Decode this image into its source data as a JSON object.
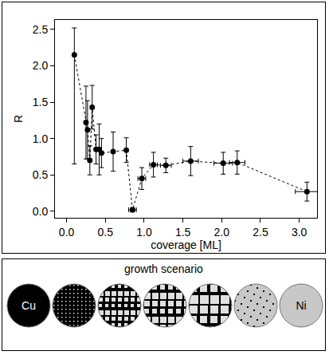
{
  "chart_data": {
    "type": "scatter",
    "x_label": "coverage [ML]",
    "y_label": "R",
    "x": [
      0.1,
      0.25,
      0.27,
      0.3,
      0.33,
      0.38,
      0.42,
      0.45,
      0.6,
      0.77,
      0.85,
      0.97,
      1.12,
      1.28,
      1.6,
      2.02,
      2.2,
      3.1
    ],
    "values": [
      2.15,
      1.22,
      1.12,
      0.7,
      1.43,
      0.85,
      0.85,
      0.8,
      0.82,
      0.84,
      0.02,
      0.45,
      0.64,
      0.63,
      0.69,
      0.66,
      0.67,
      0.27
    ],
    "y_err_plus": [
      0.37,
      0.5,
      0.4,
      0.2,
      0.3,
      0.2,
      0.35,
      0.2,
      0.27,
      0.17,
      0.03,
      0.15,
      0.17,
      0.1,
      0.2,
      0.15,
      0.16,
      0.13
    ],
    "y_err_minus": [
      1.5,
      0.5,
      0.4,
      0.2,
      0.3,
      0.2,
      0.35,
      0.2,
      0.27,
      0.17,
      0.03,
      0.15,
      0.17,
      0.1,
      0.2,
      0.15,
      0.16,
      0.13
    ],
    "x_err": [
      0,
      0,
      0,
      0,
      0,
      0,
      0,
      0,
      0,
      0,
      0.05,
      0.05,
      0.05,
      0.07,
      0.1,
      0.12,
      0.1,
      0.15
    ],
    "xlim": [
      -0.15,
      3.23
    ],
    "ylim": [
      -0.09,
      2.63
    ],
    "xticks": [
      {
        "value": 0,
        "label": "0.0"
      },
      0.5,
      {
        "value": 1,
        "label": "1.0"
      },
      1.5,
      {
        "value": 2,
        "label": "2.0"
      },
      2.5,
      {
        "value": 3,
        "label": "3.0"
      }
    ],
    "yticks": [
      {
        "value": 0,
        "label": "0.0"
      },
      0.5,
      {
        "value": 1,
        "label": "1.0"
      },
      1.5,
      {
        "value": 2,
        "label": "2.0"
      },
      2.5
    ],
    "color": "#000000",
    "marker": "circle",
    "line_style": "dash",
    "grid": false
  },
  "panel": {
    "title": "growth scenario",
    "start_label": "Cu",
    "end_label": "Ni"
  }
}
